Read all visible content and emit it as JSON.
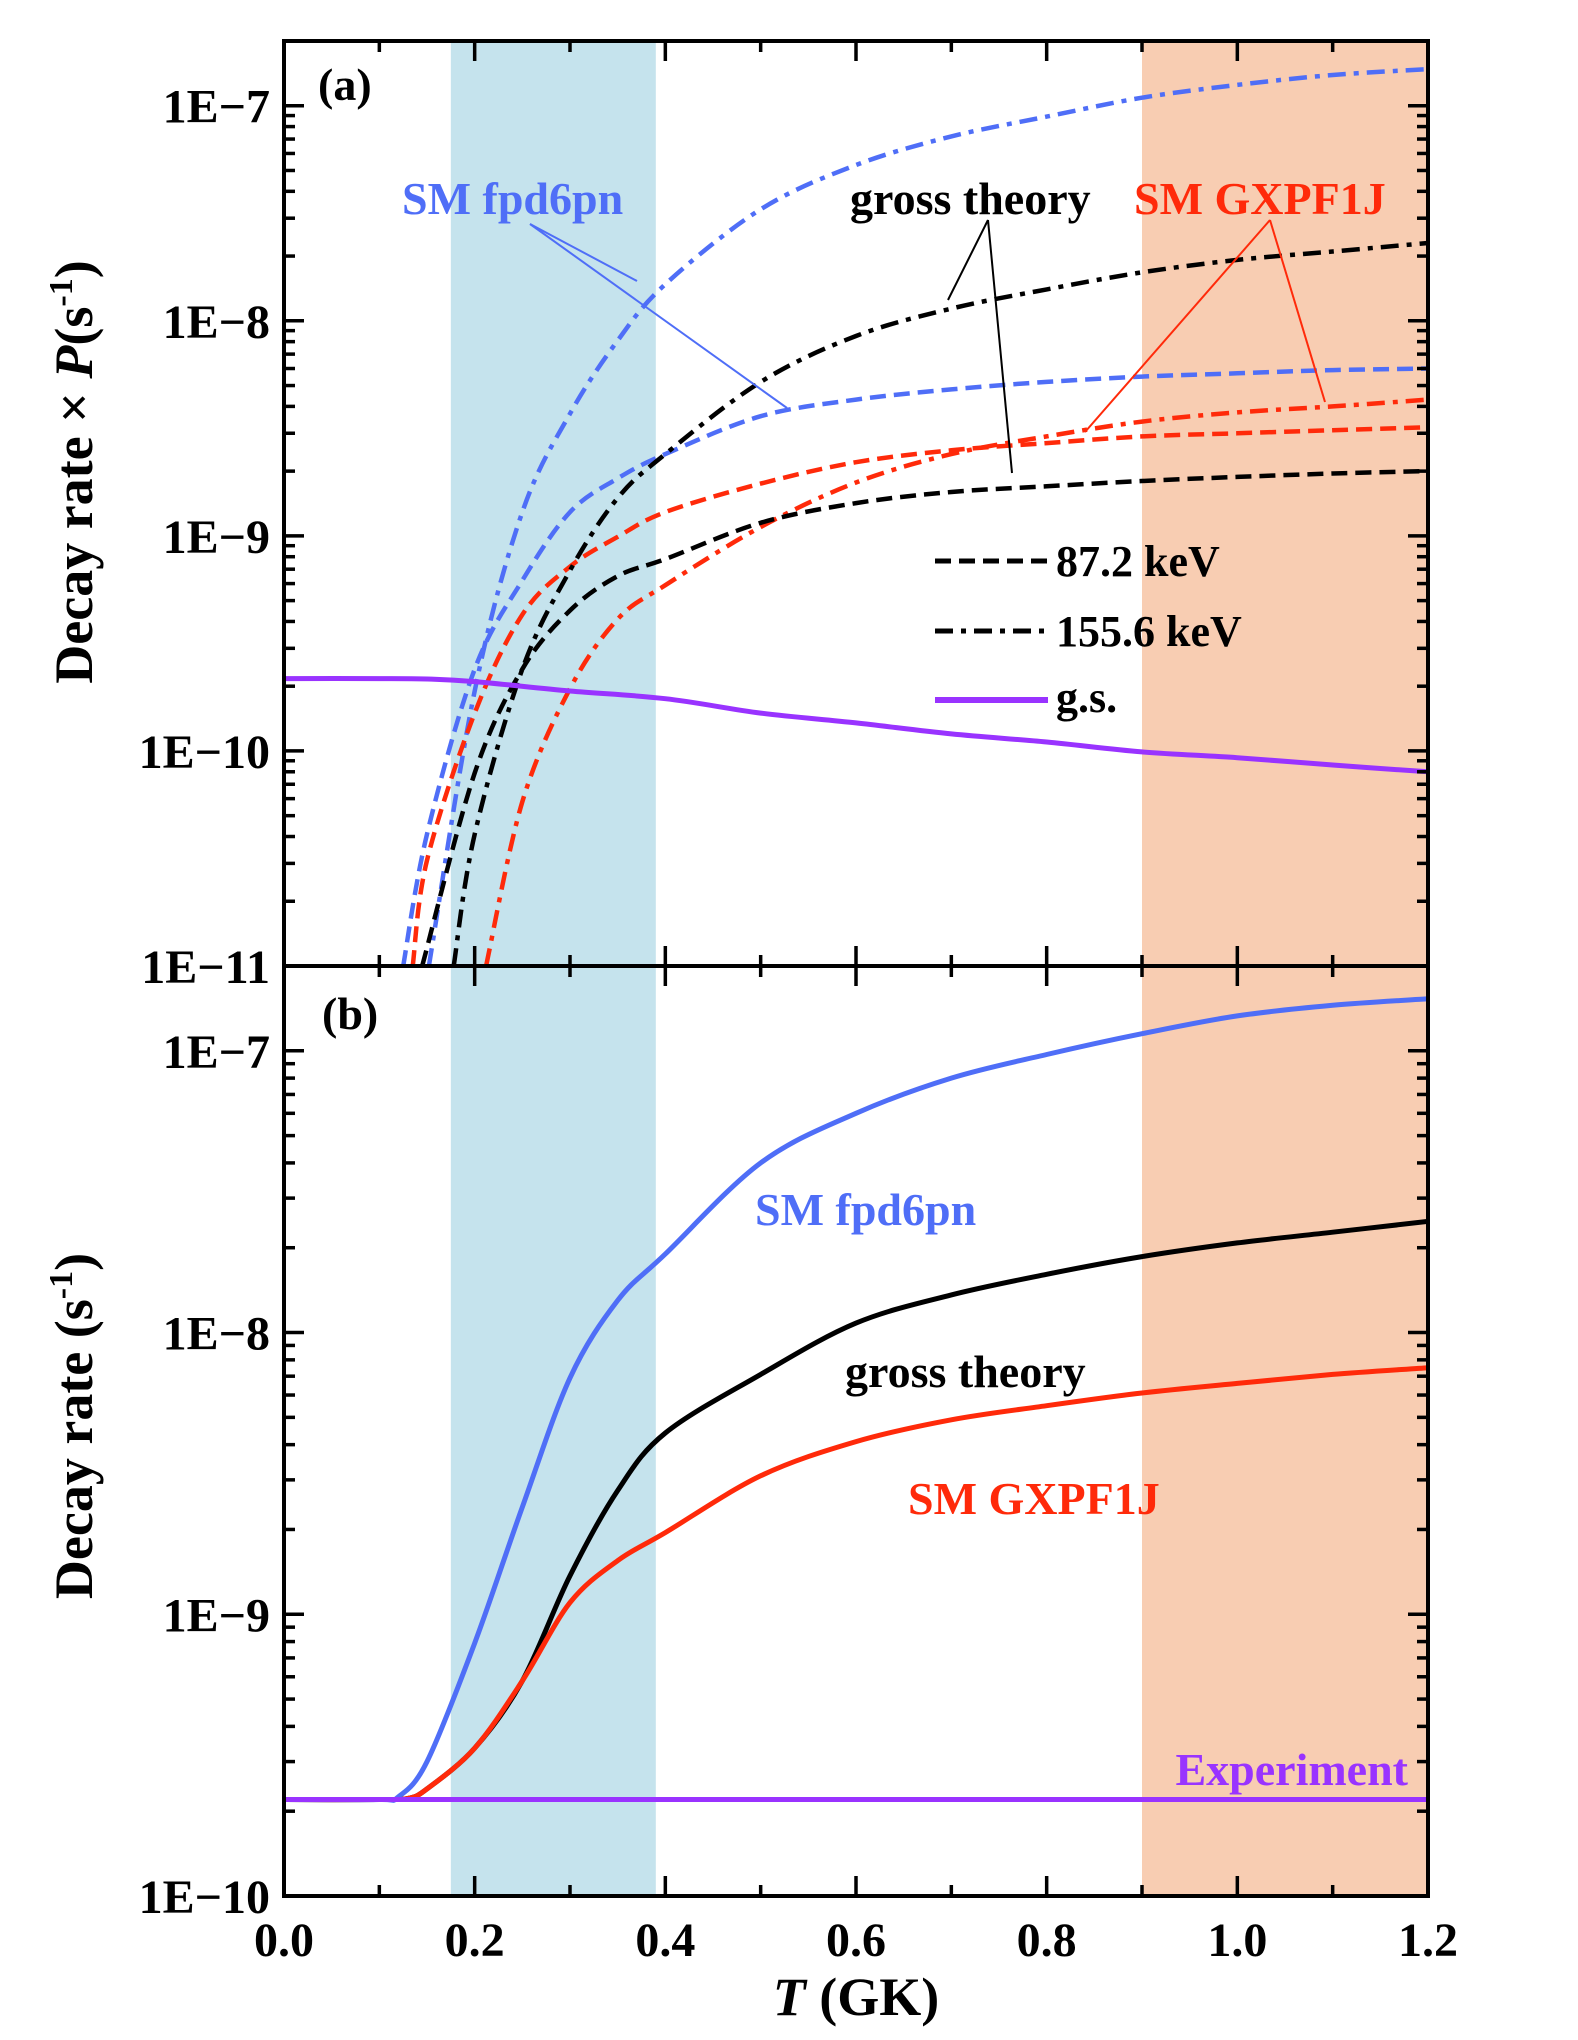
{
  "chart_data": [
    {
      "type": "line",
      "panel_label": "(a)",
      "xlabel": {
        "var": "T",
        "unit": " (GK)"
      },
      "ylabel": {
        "text": "Decay rate × ",
        "var": "P",
        "open": "(s",
        "exp": "-1",
        "close": ")"
      },
      "xlim": [
        0,
        1.2
      ],
      "ylim": [
        1e-11,
        2e-07
      ],
      "yscale": "log",
      "x_ticks": [
        0,
        0.2,
        0.4,
        0.6,
        0.8,
        1.0,
        1.2
      ],
      "y_ticks": [
        1e-11,
        1e-10,
        1e-09,
        1e-08,
        1e-07
      ],
      "y_tick_labels": [
        "1E−11",
        "1E−10",
        "1E−9",
        "1E−8",
        "1E−7"
      ],
      "grid": false,
      "legend_position": "center-right",
      "legend": [
        {
          "label": "87.2 keV",
          "style": "dashed",
          "color": "#000000"
        },
        {
          "label": "155.6 keV",
          "style": "dash-dot",
          "color": "#000000"
        },
        {
          "label": "g.s.",
          "style": "solid",
          "color": "#9933ff"
        }
      ],
      "shaded_regions": [
        {
          "x": [
            0.175,
            0.39
          ],
          "color": "#c5e3ed"
        },
        {
          "x": [
            0.9,
            1.2
          ],
          "color": "#f8cdb2"
        }
      ],
      "annotations": [
        {
          "text": "SM fpd6pn",
          "color": "#4f6ef7"
        },
        {
          "text": "gross theory",
          "color": "#000000"
        },
        {
          "text": "SM GXPF1J",
          "color": "#ff2a0a"
        }
      ],
      "series": [
        {
          "model": "SM fpd6pn",
          "state": "155.6 keV",
          "style": "dash-dot",
          "color": "#4f6ef7",
          "x": [
            0.152,
            0.2,
            0.25,
            0.3,
            0.35,
            0.4,
            0.5,
            0.6,
            0.7,
            0.8,
            0.9,
            1.0,
            1.1,
            1.2
          ],
          "y": [
            1e-11,
            1.9e-10,
            1.29e-09,
            3.7e-09,
            8.1e-09,
            1.48e-08,
            3.3e-08,
            5.3e-08,
            7.2e-08,
            8.9e-08,
            1.09e-07,
            1.25e-07,
            1.39e-07,
            1.48e-07
          ]
        },
        {
          "model": "SM fpd6pn",
          "state": "87.2 keV",
          "style": "dashed",
          "color": "#4f6ef7",
          "x": [
            0.125,
            0.15,
            0.2,
            0.25,
            0.3,
            0.35,
            0.4,
            0.5,
            0.6,
            0.7,
            0.8,
            0.9,
            1.0,
            1.1,
            1.2
          ],
          "y": [
            1e-11,
            4.1e-11,
            2.4e-10,
            6.2e-10,
            1.29e-09,
            1.85e-09,
            2.4e-09,
            3.6e-09,
            4.3e-09,
            4.8e-09,
            5.2e-09,
            5.5e-09,
            5.7e-09,
            5.9e-09,
            6e-09
          ]
        },
        {
          "model": "SM GXPF1J",
          "state": "87.2 keV",
          "style": "dashed",
          "color": "#ff2a0a",
          "x": [
            0.135,
            0.15,
            0.2,
            0.25,
            0.3,
            0.35,
            0.4,
            0.5,
            0.6,
            0.7,
            0.8,
            0.9,
            1.0,
            1.1,
            1.2
          ],
          "y": [
            1e-11,
            3.1e-11,
            1.5e-10,
            4.3e-10,
            7.2e-10,
            9.9e-10,
            1.29e-09,
            1.75e-09,
            2.2e-09,
            2.5e-09,
            2.7e-09,
            2.9e-09,
            3e-09,
            3.1e-09,
            3.2e-09
          ]
        },
        {
          "model": "SM GXPF1J",
          "state": "155.6 keV",
          "style": "dash-dot",
          "color": "#ff2a0a",
          "x": [
            0.212,
            0.25,
            0.3,
            0.35,
            0.4,
            0.5,
            0.6,
            0.7,
            0.8,
            0.9,
            1.0,
            1.1,
            1.2
          ],
          "y": [
            1e-11,
            5.8e-11,
            1.95e-10,
            4.1e-10,
            5.9e-10,
            1.1e-09,
            1.77e-09,
            2.4e-09,
            2.9e-09,
            3.4e-09,
            3.75e-09,
            4e-09,
            4.3e-09
          ]
        },
        {
          "model": "gross theory",
          "state": "87.2 keV",
          "style": "dashed",
          "color": "#000000",
          "x": [
            0.145,
            0.2,
            0.25,
            0.3,
            0.35,
            0.4,
            0.5,
            0.6,
            0.7,
            0.8,
            0.9,
            1.0,
            1.1,
            1.2
          ],
          "y": [
            1e-11,
            7.9e-11,
            2.4e-10,
            4.5e-10,
            6.5e-10,
            7.8e-10,
            1.15e-09,
            1.42e-09,
            1.6e-09,
            1.7e-09,
            1.8e-09,
            1.88e-09,
            1.95e-09,
            2e-09
          ]
        },
        {
          "model": "gross theory",
          "state": "155.6 keV",
          "style": "dash-dot",
          "color": "#000000",
          "x": [
            0.178,
            0.2,
            0.25,
            0.3,
            0.35,
            0.4,
            0.5,
            0.6,
            0.7,
            0.8,
            0.9,
            1.0,
            1.1,
            1.2
          ],
          "y": [
            1e-11,
            4.1e-11,
            2.4e-10,
            6.9e-10,
            1.5e-09,
            2.4e-09,
            5.2e-09,
            8.5e-09,
            1.14e-08,
            1.4e-08,
            1.68e-08,
            1.92e-08,
            2.1e-08,
            2.3e-08
          ]
        },
        {
          "model": "",
          "state": "g.s.",
          "style": "solid",
          "color": "#9933ff",
          "x": [
            0.0,
            0.1,
            0.15,
            0.2,
            0.3,
            0.4,
            0.5,
            0.6,
            0.7,
            0.8,
            0.9,
            1.0,
            1.1,
            1.2
          ],
          "y": [
            2.17e-10,
            2.17e-10,
            2.16e-10,
            2.1e-10,
            1.9e-10,
            1.75e-10,
            1.5e-10,
            1.35e-10,
            1.2e-10,
            1.1e-10,
            9.9e-11,
            9.3e-11,
            8.6e-11,
            8e-11
          ]
        }
      ]
    },
    {
      "type": "line",
      "panel_label": "(b)",
      "xlabel": {
        "var": "T",
        "unit": " (GK)"
      },
      "ylabel": {
        "text": "Decay rate ",
        "open": "(s",
        "exp": "-1",
        "close": ")"
      },
      "xlim": [
        0,
        1.2
      ],
      "ylim": [
        1e-10,
        2e-07
      ],
      "yscale": "log",
      "x_ticks": [
        0,
        0.2,
        0.4,
        0.6,
        0.8,
        1.0,
        1.2
      ],
      "x_tick_labels": [
        "0.0",
        "0.2",
        "0.4",
        "0.6",
        "0.8",
        "1.0",
        "1.2"
      ],
      "y_ticks": [
        1e-10,
        1e-09,
        1e-08,
        1e-07
      ],
      "y_tick_labels": [
        "1E−10",
        "1E−9",
        "1E−8",
        "1E−7"
      ],
      "grid": false,
      "shaded_regions": [
        {
          "x": [
            0.175,
            0.39
          ],
          "color": "#c5e3ed"
        },
        {
          "x": [
            0.9,
            1.2
          ],
          "color": "#f8cdb2"
        }
      ],
      "series": [
        {
          "name": "SM fpd6pn",
          "style": "solid",
          "color": "#4f6ef7",
          "x": [
            0.0,
            0.1,
            0.12,
            0.15,
            0.2,
            0.25,
            0.3,
            0.35,
            0.4,
            0.5,
            0.6,
            0.7,
            0.8,
            0.9,
            1.0,
            1.1,
            1.2
          ],
          "y": [
            2.2e-10,
            2.2e-10,
            2.25e-10,
            3e-10,
            7.9e-10,
            2.4e-09,
            6.9e-09,
            1.3e-08,
            1.9e-08,
            4e-08,
            6e-08,
            8e-08,
            9.7e-08,
            1.15e-07,
            1.33e-07,
            1.45e-07,
            1.53e-07
          ]
        },
        {
          "name": "gross theory",
          "style": "solid",
          "color": "#000000",
          "x": [
            0.0,
            0.1,
            0.13,
            0.15,
            0.2,
            0.25,
            0.3,
            0.35,
            0.4,
            0.5,
            0.6,
            0.7,
            0.8,
            0.9,
            1.0,
            1.1,
            1.2
          ],
          "y": [
            2.2e-10,
            2.2e-10,
            2.22e-10,
            2.4e-10,
            3.35e-10,
            5.8e-10,
            1.37e-09,
            2.75e-09,
            4.4e-09,
            7.1e-09,
            1.08e-08,
            1.36e-08,
            1.61e-08,
            1.86e-08,
            2.08e-08,
            2.27e-08,
            2.48e-08
          ]
        },
        {
          "name": "SM GXPF1J",
          "style": "solid",
          "color": "#ff2a0a",
          "x": [
            0.0,
            0.1,
            0.13,
            0.15,
            0.2,
            0.25,
            0.3,
            0.35,
            0.4,
            0.5,
            0.6,
            0.7,
            0.8,
            0.9,
            1.0,
            1.1,
            1.2
          ],
          "y": [
            2.2e-10,
            2.2e-10,
            2.22e-10,
            2.4e-10,
            3.35e-10,
            5.8e-10,
            1.1e-09,
            1.55e-09,
            1.95e-09,
            3.1e-09,
            4.1e-09,
            4.9e-09,
            5.5e-09,
            6.1e-09,
            6.6e-09,
            7.1e-09,
            7.5e-09
          ]
        },
        {
          "name": "Experiment",
          "style": "solid",
          "color": "#9933ff",
          "x": [
            0.0,
            1.2
          ],
          "y": [
            2.2e-10,
            2.2e-10
          ]
        }
      ]
    }
  ]
}
